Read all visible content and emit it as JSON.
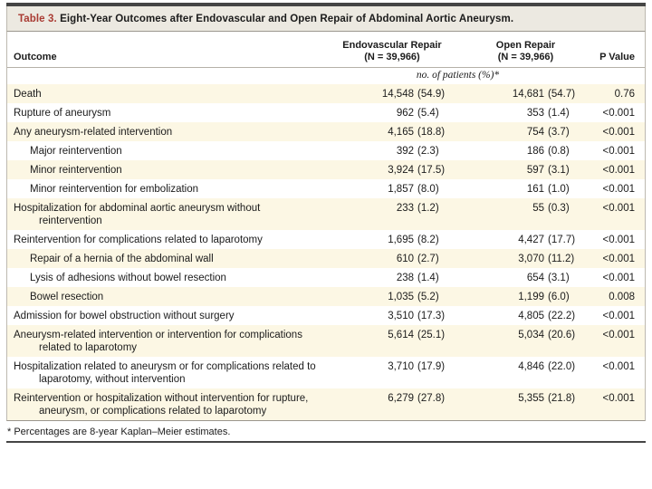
{
  "colors": {
    "accent_red": "#A93B33",
    "row_stripe_cream": "#FCF7E4",
    "title_bar_bg": "#ECE9E1",
    "rule_dark": "#454545"
  },
  "title": {
    "label": "Table 3.",
    "text": "Eight-Year Outcomes after Endovascular and Open Repair of Abdominal Aortic Aneurysm."
  },
  "columns": {
    "outcome": "Outcome",
    "endovascular": {
      "title": "Endovascular Repair",
      "n": "(N = 39,966)"
    },
    "open": {
      "title": "Open Repair",
      "n": "(N = 39,966)"
    },
    "p_value": "P Value",
    "units_note": "no. of patients (%)*"
  },
  "table": {
    "rows": [
      {
        "outcome": "Death",
        "indent": 0,
        "endo_n": "14,548",
        "endo_pct": "(54.9)",
        "open_n": "14,681",
        "open_pct": "(54.7)",
        "p": "0.76"
      },
      {
        "outcome": "Rupture of aneurysm",
        "indent": 0,
        "endo_n": "962",
        "endo_pct": "(5.4)",
        "open_n": "353",
        "open_pct": "(1.4)",
        "p": "<0.001"
      },
      {
        "outcome": "Any aneurysm-related intervention",
        "indent": 0,
        "endo_n": "4,165",
        "endo_pct": "(18.8)",
        "open_n": "754",
        "open_pct": "(3.7)",
        "p": "<0.001"
      },
      {
        "outcome": "Major reintervention",
        "indent": 1,
        "endo_n": "392",
        "endo_pct": "(2.3)",
        "open_n": "186",
        "open_pct": "(0.8)",
        "p": "<0.001"
      },
      {
        "outcome": "Minor reintervention",
        "indent": 1,
        "endo_n": "3,924",
        "endo_pct": "(17.5)",
        "open_n": "597",
        "open_pct": "(3.1)",
        "p": "<0.001"
      },
      {
        "outcome": "Minor reintervention for embolization",
        "indent": 1,
        "endo_n": "1,857",
        "endo_pct": "(8.0)",
        "open_n": "161",
        "open_pct": "(1.0)",
        "p": "<0.001"
      },
      {
        "outcome": "Hospitalization for abdominal aortic aneurysm without reintervention",
        "indent": 0,
        "endo_n": "233",
        "endo_pct": "(1.2)",
        "open_n": "55",
        "open_pct": "(0.3)",
        "p": "<0.001"
      },
      {
        "outcome": "Reintervention for complications related to laparotomy",
        "indent": 0,
        "endo_n": "1,695",
        "endo_pct": "(8.2)",
        "open_n": "4,427",
        "open_pct": "(17.7)",
        "p": "<0.001"
      },
      {
        "outcome": "Repair of a hernia of the abdominal wall",
        "indent": 1,
        "endo_n": "610",
        "endo_pct": "(2.7)",
        "open_n": "3,070",
        "open_pct": "(11.2)",
        "p": "<0.001"
      },
      {
        "outcome": "Lysis of adhesions without bowel resection",
        "indent": 1,
        "endo_n": "238",
        "endo_pct": "(1.4)",
        "open_n": "654",
        "open_pct": "(3.1)",
        "p": "<0.001"
      },
      {
        "outcome": "Bowel resection",
        "indent": 1,
        "endo_n": "1,035",
        "endo_pct": "(5.2)",
        "open_n": "1,199",
        "open_pct": "(6.0)",
        "p": "0.008"
      },
      {
        "outcome": "Admission for bowel obstruction without surgery",
        "indent": 0,
        "endo_n": "3,510",
        "endo_pct": "(17.3)",
        "open_n": "4,805",
        "open_pct": "(22.2)",
        "p": "<0.001"
      },
      {
        "outcome": "Aneurysm-related intervention or intervention for complications related to laparotomy",
        "indent": 0,
        "endo_n": "5,614",
        "endo_pct": "(25.1)",
        "open_n": "5,034",
        "open_pct": "(20.6)",
        "p": "<0.001"
      },
      {
        "outcome": "Hospitalization related to aneurysm or for complications related to laparotomy, without intervention",
        "indent": 0,
        "endo_n": "3,710",
        "endo_pct": "(17.9)",
        "open_n": "4,846",
        "open_pct": "(22.0)",
        "p": "<0.001"
      },
      {
        "outcome": "Reintervention or hospitalization without intervention for rupture, aneurysm, or complications related to laparotomy",
        "indent": 0,
        "endo_n": "6,279",
        "endo_pct": "(27.8)",
        "open_n": "5,355",
        "open_pct": "(21.8)",
        "p": "<0.001"
      }
    ]
  },
  "footnote": "* Percentages are 8-year Kaplan–Meier estimates."
}
